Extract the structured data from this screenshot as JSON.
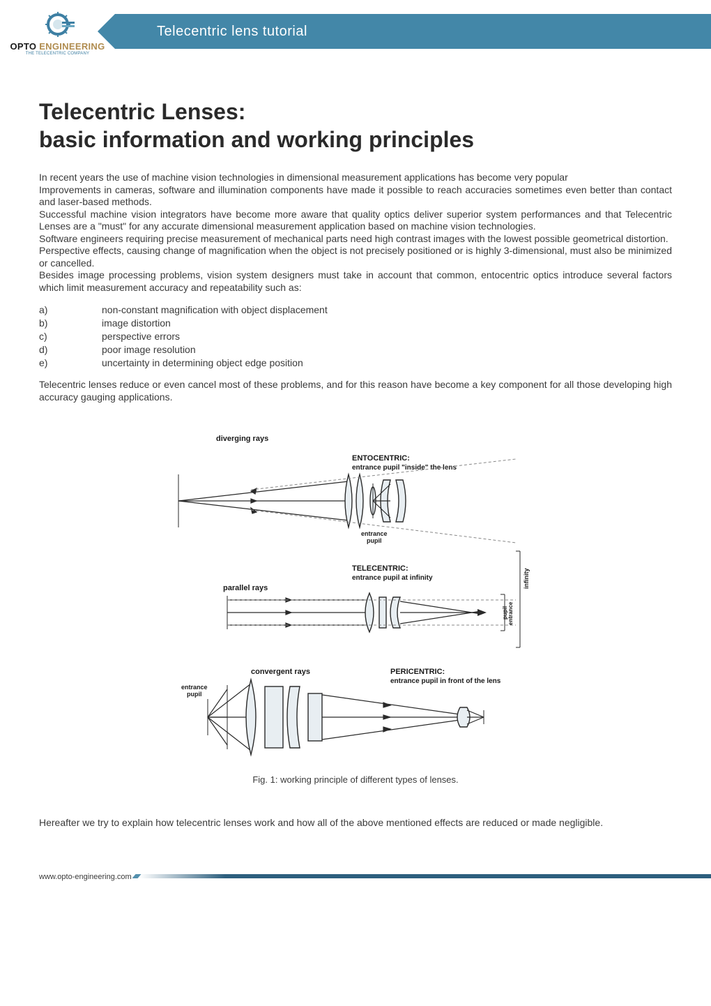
{
  "header": {
    "logo_top": "OPTO",
    "logo_mid": "ENGINEERING",
    "logo_sub": "THE TELECENTRIC COMPANY",
    "band_title": "Telecentric lens tutorial"
  },
  "title_line1": "Telecentric Lenses:",
  "title_line2": "basic information and working principles",
  "intro": " In recent years the use of machine vision technologies in dimensional measurement applications has become very popular\n Improvements in cameras, software and illumination components have made it possible to reach accuracies sometimes even better than contact and laser-based methods.\n Successful machine vision integrators have become more aware that quality optics deliver superior system performances and that Telecentric Lenses are a \"must\" for any accurate dimensional measurement application based on machine vision technologies.\n Software engineers requiring precise measurement of mechanical parts need high contrast images with the lowest possible geometrical distortion.\n Perspective effects, causing change of magnification when the object is not precisely positioned or is highly 3-dimensional, must also be minimized or cancelled.\n Besides image processing problems, vision system designers must take in account that common, entocentric optics introduce several factors which limit measurement accuracy and repeatability such as:",
  "list": [
    {
      "k": "a)",
      "v": "non-constant magnification with object displacement"
    },
    {
      "k": "b)",
      "v": "image distortion"
    },
    {
      "k": "c)",
      "v": "perspective errors"
    },
    {
      "k": "d)",
      "v": "poor image resolution"
    },
    {
      "k": "e)",
      "v": "uncertainty in determining object edge position"
    }
  ],
  "para2": " Telecentric lenses reduce or even cancel most of these problems, and for this reason have become a key component for all those developing high accuracy gauging applications.",
  "diagram": {
    "labels": {
      "diverging": "diverging rays",
      "parallel": "parallel rays",
      "convergent": "convergent rays",
      "ento_title": "ENTOCENTRIC:",
      "ento_sub": "entrance pupil \"inside\" the lens",
      "tele_title": "TELECENTRIC:",
      "tele_sub": "entrance pupil at infinity",
      "peri_title": "PERICENTRIC:",
      "peri_sub": "entrance pupil in front of the lens",
      "entrance_pupil": "entrance\npupil",
      "infinity": "infinity"
    },
    "colors": {
      "lens_fill": "#e8eef2",
      "lens_stroke": "#2a2a2a",
      "ray": "#2a2a2a",
      "dash": "#888888",
      "text": "#1a1a1a"
    },
    "label_fontsize": 10,
    "title_fontsize": 11
  },
  "caption": "Fig. 1: working principle of different types of lenses.",
  "closing": " Hereafter we try to explain how telecentric lenses work and how all of the above mentioned effects are reduced or made negligible.",
  "footer_url": "www.opto-engineering.com"
}
